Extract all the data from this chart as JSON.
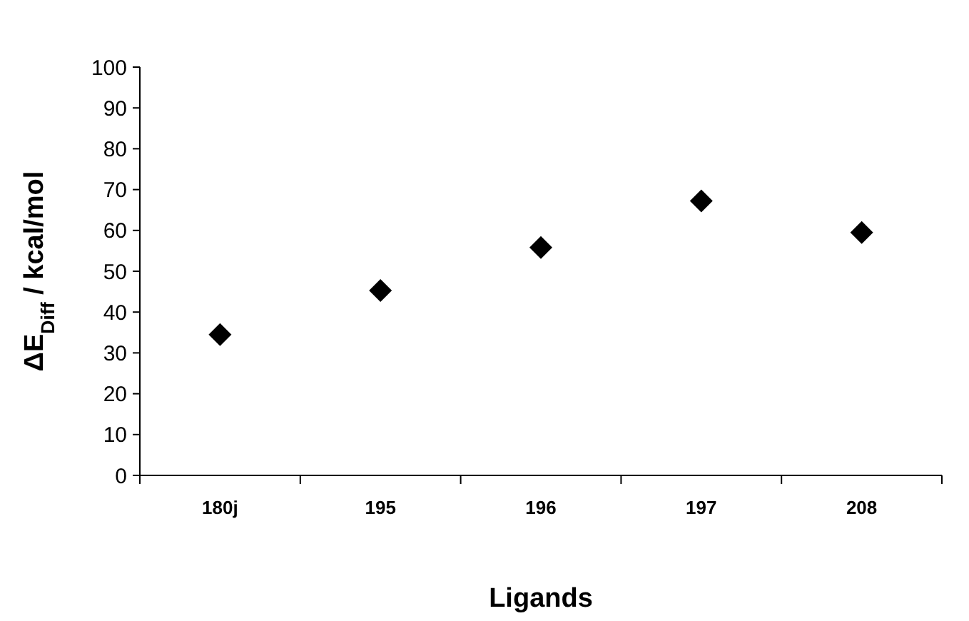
{
  "chart_data": {
    "type": "scatter",
    "xlabel": "Ligands",
    "ylabel": "ΔE$_{Diff}$ / kcal/mol",
    "categories": [
      "180j",
      "195",
      "196",
      "197",
      "208"
    ],
    "series": [
      {
        "color": "#000000",
        "values": [
          34.5,
          45.3,
          55.8,
          67.2,
          59.5
        ]
      }
    ],
    "ylim": [
      0,
      100
    ],
    "yticks": [
      0,
      10,
      20,
      30,
      40,
      50,
      60,
      70,
      80,
      90,
      100
    ],
    "marker": "diamond",
    "grid": false
  }
}
